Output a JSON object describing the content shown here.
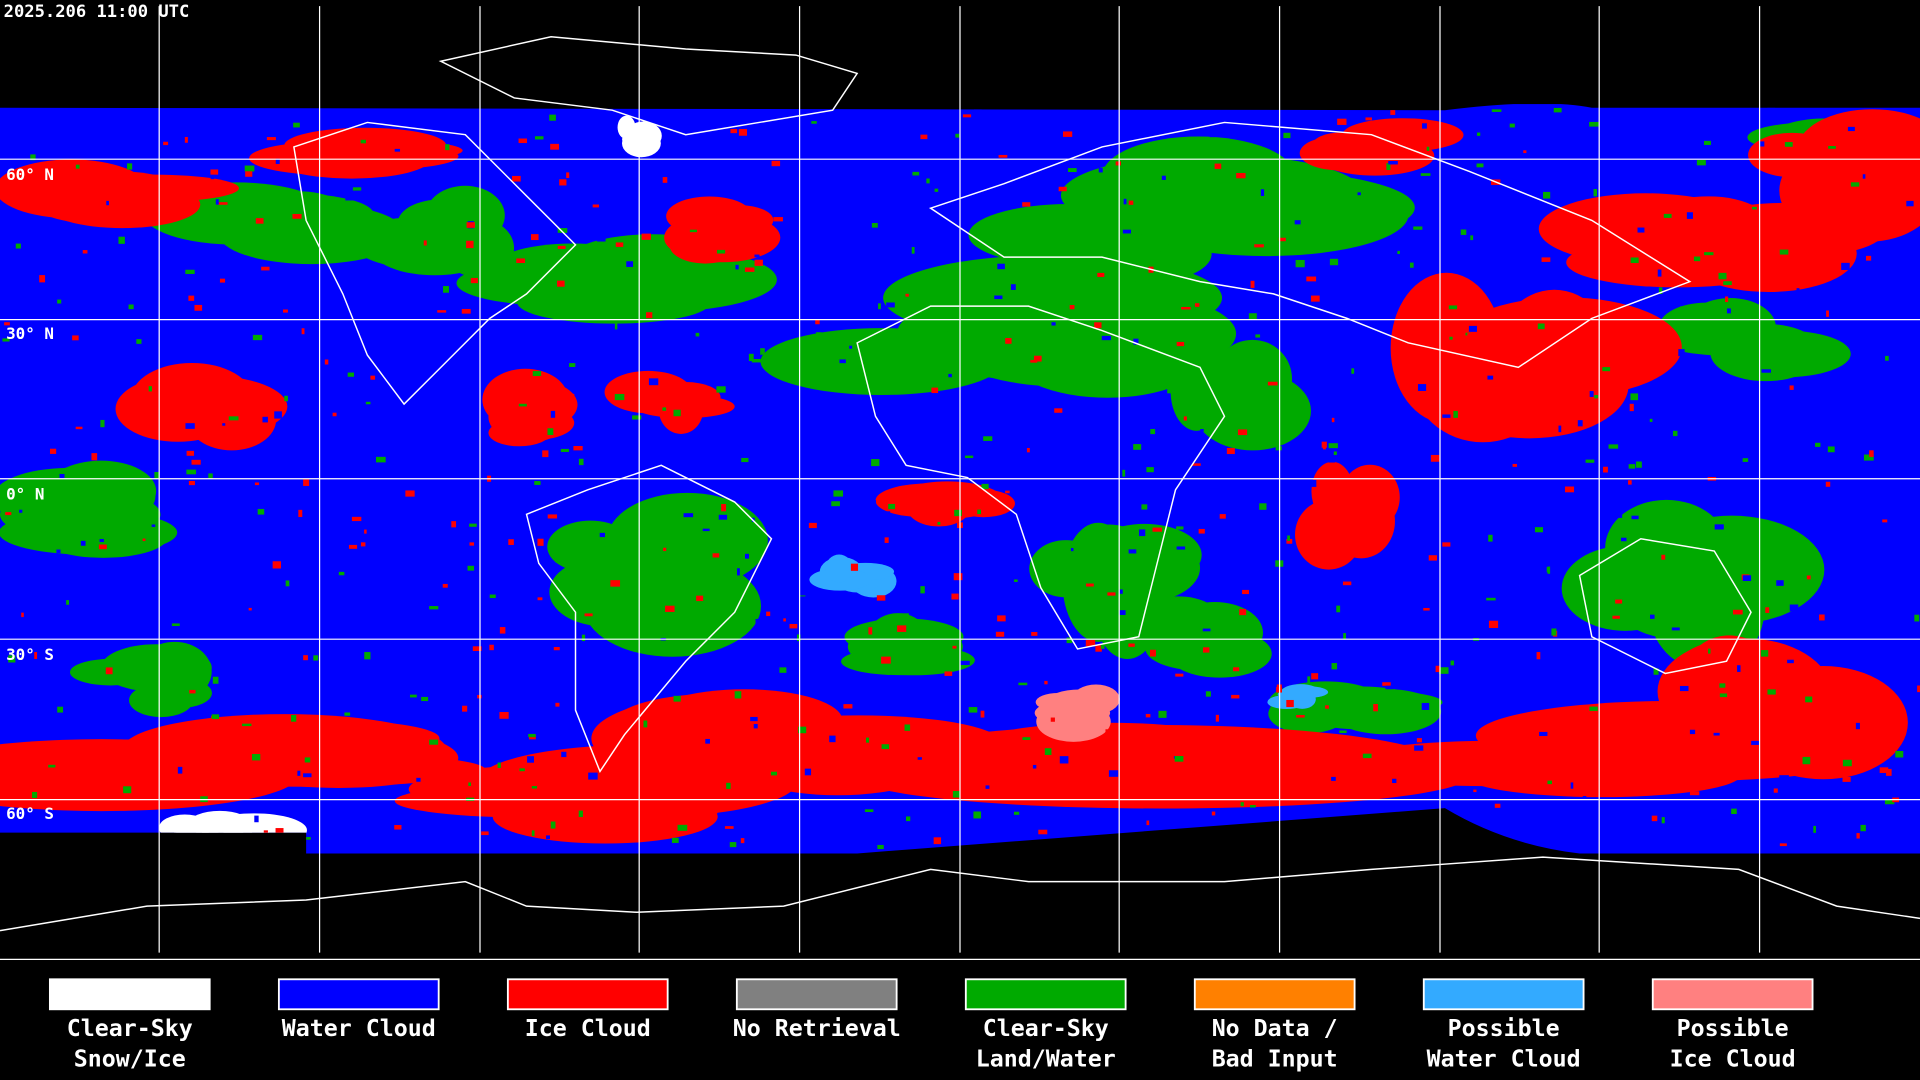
{
  "timestamp": "2025.206 11:00 UTC",
  "latitude_labels": [
    "60° N",
    "30° N",
    "0° N",
    "30° S",
    "60° S"
  ],
  "colors": {
    "background": "#000000",
    "grid": "#ffffff",
    "coastline": "#ffffff"
  },
  "legend": [
    {
      "line1": "Clear-Sky",
      "line2": "Snow/Ice",
      "color": "#ffffff"
    },
    {
      "line1": "Water Cloud",
      "line2": "",
      "color": "#0000ff"
    },
    {
      "line1": "Ice Cloud",
      "line2": "",
      "color": "#ff0000"
    },
    {
      "line1": "No Retrieval",
      "line2": "",
      "color": "#808080"
    },
    {
      "line1": "Clear-Sky",
      "line2": "Land/Water",
      "color": "#00aa00"
    },
    {
      "line1": "No Data /",
      "line2": "Bad Input",
      "color": "#ff8000"
    },
    {
      "line1": "Possible",
      "line2": "Water Cloud",
      "color": "#33aaff"
    },
    {
      "line1": "Possible",
      "line2": "Ice Cloud",
      "color": "#ff8080"
    }
  ]
}
